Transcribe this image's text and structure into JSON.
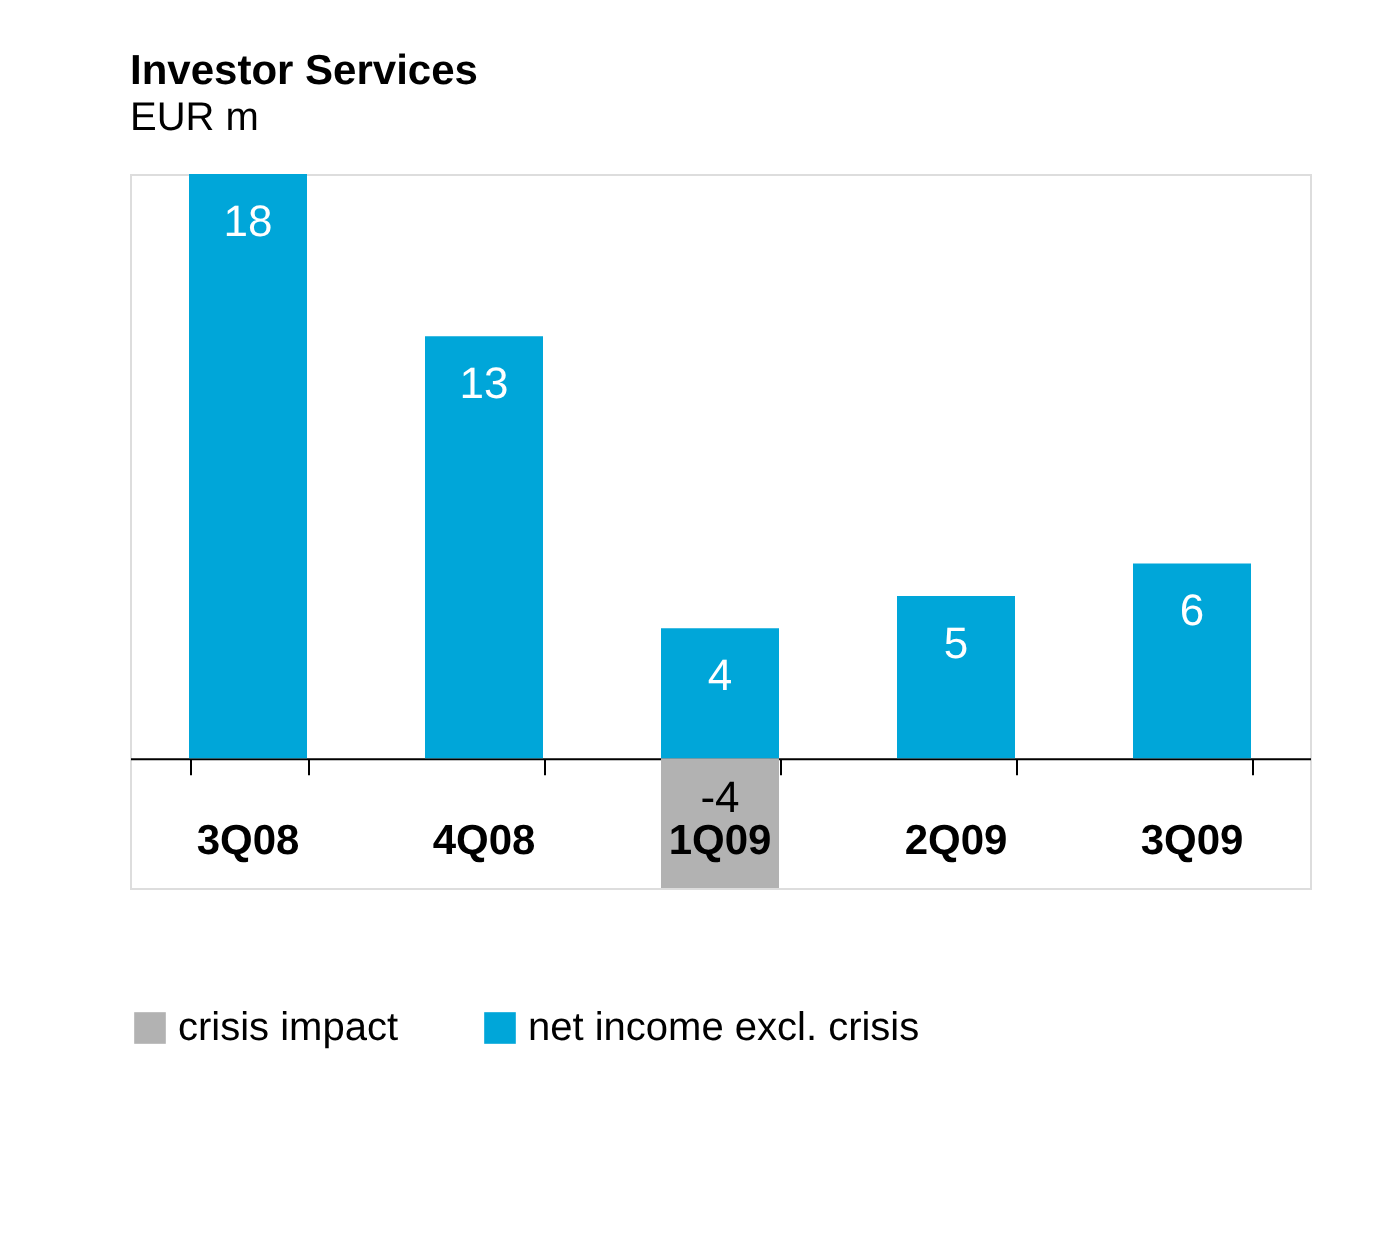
{
  "chart_data": {
    "type": "bar",
    "title": "Investor Services",
    "subtitle": "EUR m",
    "categories": [
      "3Q08",
      "4Q08",
      "1Q09",
      "2Q09",
      "3Q09"
    ],
    "stacked": true,
    "data_labels": true,
    "legend": "bottom",
    "grid": false,
    "series": [
      {
        "name": "crisis impact",
        "color": "#b2b2b2",
        "values": [
          null,
          null,
          -4,
          null,
          null
        ]
      },
      {
        "name": "net income excl. crisis",
        "color": "#00a6d9",
        "values": [
          18,
          13,
          4,
          5,
          6
        ]
      }
    ]
  }
}
